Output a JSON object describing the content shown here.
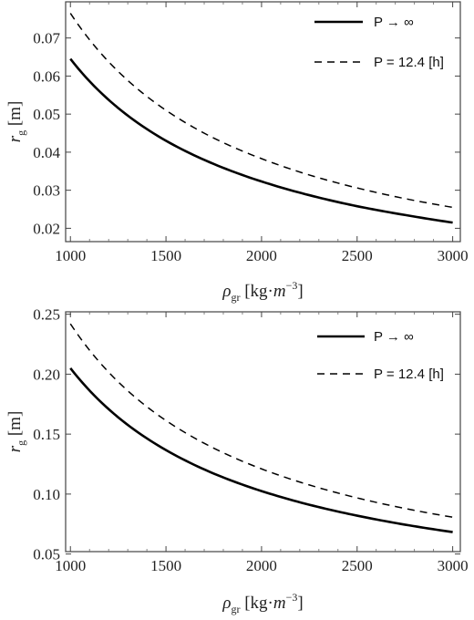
{
  "chart_data": [
    {
      "type": "line",
      "xlabel": {
        "symbol": "ρ",
        "sub": "gr",
        "unit_open": " [kg·",
        "unit_var": "m",
        "unit_exp": "−3",
        "unit_close": "]"
      },
      "ylabel": {
        "symbol": "r",
        "sub": "g",
        "unit": " [m]"
      },
      "xlim": [
        975,
        3040
      ],
      "ylim": [
        0.0165,
        0.0795
      ],
      "x_ticks": [
        1000,
        1500,
        2000,
        2500,
        3000
      ],
      "y_ticks": [
        0.02,
        0.03,
        0.04,
        0.05,
        0.06,
        0.07
      ],
      "y_tick_decimals": 2,
      "legend_position": "top-right",
      "series": [
        {
          "name": "P → ∞",
          "style": "solid",
          "x": [
            1000,
            1250,
            1500,
            1750,
            2000,
            2250,
            2500,
            2750,
            3000
          ],
          "y": [
            0.0645,
            0.0516,
            0.043,
            0.0369,
            0.0323,
            0.0287,
            0.0258,
            0.0235,
            0.0215
          ]
        },
        {
          "name": "P = 12.4 [h]",
          "style": "dashed",
          "x": [
            1000,
            1250,
            1500,
            1750,
            2000,
            2250,
            2500,
            2750,
            3000
          ],
          "y": [
            0.0765,
            0.0612,
            0.051,
            0.0437,
            0.0383,
            0.034,
            0.0306,
            0.0278,
            0.0255
          ]
        }
      ]
    },
    {
      "type": "line",
      "xlabel": {
        "symbol": "ρ",
        "sub": "gr",
        "unit_open": " [kg·",
        "unit_var": "m",
        "unit_exp": "−3",
        "unit_close": "]"
      },
      "ylabel": {
        "symbol": "r",
        "sub": "g",
        "unit": " [m]"
      },
      "xlim": [
        975,
        3040
      ],
      "ylim": [
        0.052,
        0.252
      ],
      "x_ticks": [
        1000,
        1500,
        2000,
        2500,
        3000
      ],
      "y_ticks": [
        0.05,
        0.1,
        0.15,
        0.2,
        0.25
      ],
      "y_tick_decimals": 2,
      "legend_position": "top-right",
      "series": [
        {
          "name": "P → ∞",
          "style": "solid",
          "x": [
            1000,
            1250,
            1500,
            1750,
            2000,
            2250,
            2500,
            2750,
            3000
          ],
          "y": [
            0.205,
            0.164,
            0.1367,
            0.1171,
            0.1025,
            0.0911,
            0.082,
            0.0745,
            0.0683
          ]
        },
        {
          "name": "P = 12.4 [h]",
          "style": "dashed",
          "x": [
            1000,
            1250,
            1500,
            1750,
            2000,
            2250,
            2500,
            2750,
            3000
          ],
          "y": [
            0.242,
            0.1936,
            0.1613,
            0.1383,
            0.121,
            0.1076,
            0.0968,
            0.088,
            0.0807
          ]
        }
      ]
    }
  ]
}
